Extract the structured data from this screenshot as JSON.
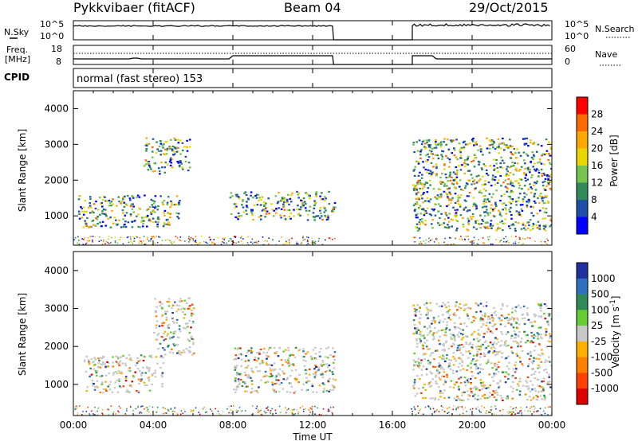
{
  "header": {
    "station": "Pykkvibaer (fitACF)",
    "beam": "Beam 04",
    "date": "29/Oct/2015"
  },
  "sky_panel": {
    "left_label": "N.Sky",
    "left_ticks": [
      "10^5",
      "10^0"
    ],
    "right_label": "N.Search",
    "right_ticks": [
      "10^5",
      "10^0"
    ]
  },
  "freq_panel": {
    "left_label_1": "Freq.",
    "left_label_2": "[MHz]",
    "left_ticks": [
      "18",
      "8"
    ],
    "right_label": "Nave",
    "right_ticks": [
      "60",
      "0"
    ]
  },
  "cpid": {
    "label": "CPID",
    "mode": "normal (fast stereo) 153"
  },
  "chart_data": [
    {
      "type": "heatmap",
      "title": "Power",
      "ylabel": "Slant Range [km]",
      "ylim": [
        180,
        4500
      ],
      "yticks": [
        "1000",
        "2000",
        "3000",
        "4000"
      ],
      "colorbar_label": "Power [dB]",
      "colorbar_ticks": [
        "28",
        "24",
        "20",
        "16",
        "12",
        "8",
        "4"
      ],
      "colorbar_colors": [
        "#ff0000",
        "#ff6a00",
        "#ffa800",
        "#e8d800",
        "#76c44e",
        "#2e8b57",
        "#1e4fa8",
        "#0000ff"
      ],
      "data_gap_ut": [
        13.1,
        16.9
      ],
      "echo_regions": [
        {
          "t0": 0.2,
          "t1": 5.3,
          "r0": 700,
          "r1": 1600,
          "level": "12-24 dB"
        },
        {
          "t0": 3.5,
          "t1": 5.8,
          "r0": 2200,
          "r1": 3200,
          "level": "8-20 dB"
        },
        {
          "t0": 7.8,
          "t1": 13.1,
          "r0": 900,
          "r1": 1700,
          "level": "16-28 dB"
        },
        {
          "t0": 17.0,
          "t1": 24.0,
          "r0": 600,
          "r1": 3200,
          "level": "12-28 dB"
        }
      ]
    },
    {
      "type": "heatmap",
      "title": "Velocity",
      "ylabel": "Slant Range [km]",
      "ylim": [
        180,
        4500
      ],
      "yticks": [
        "1000",
        "2000",
        "3000",
        "4000"
      ],
      "colorbar_label": "Velocity [m s",
      "colorbar_label_sup": "-1",
      "colorbar_label_end": "]",
      "colorbar_ticks": [
        "1000",
        "500",
        "100",
        "25",
        "-25",
        "-100",
        "-500",
        "-1000"
      ],
      "colorbar_colors": [
        "#2030a0",
        "#2e6fbf",
        "#2e8b57",
        "#66cc33",
        "#c8c8c8",
        "#ffb000",
        "#ff8000",
        "#ff4000",
        "#e00000"
      ],
      "data_gap_ut": [
        13.1,
        16.9
      ],
      "echo_regions": [
        {
          "t0": 0.5,
          "t1": 4.5,
          "r0": 800,
          "r1": 1800,
          "level": "-25 to -500 m/s"
        },
        {
          "t0": 4.0,
          "t1": 6.0,
          "r0": 1800,
          "r1": 3300,
          "level": "-25 to 25 m/s"
        },
        {
          "t0": 8.0,
          "t1": 13.1,
          "r0": 800,
          "r1": 2000,
          "level": "-25 to 25 m/s"
        },
        {
          "t0": 17.0,
          "t1": 24.0,
          "r0": 600,
          "r1": 3200,
          "level": "-25 to 100 m/s"
        }
      ]
    }
  ],
  "time_axis": {
    "label": "Time UT",
    "ticks": [
      "00:00",
      "04:00",
      "08:00",
      "12:00",
      "16:00",
      "20:00",
      "00:00"
    ],
    "range_hours": [
      0,
      24
    ]
  }
}
